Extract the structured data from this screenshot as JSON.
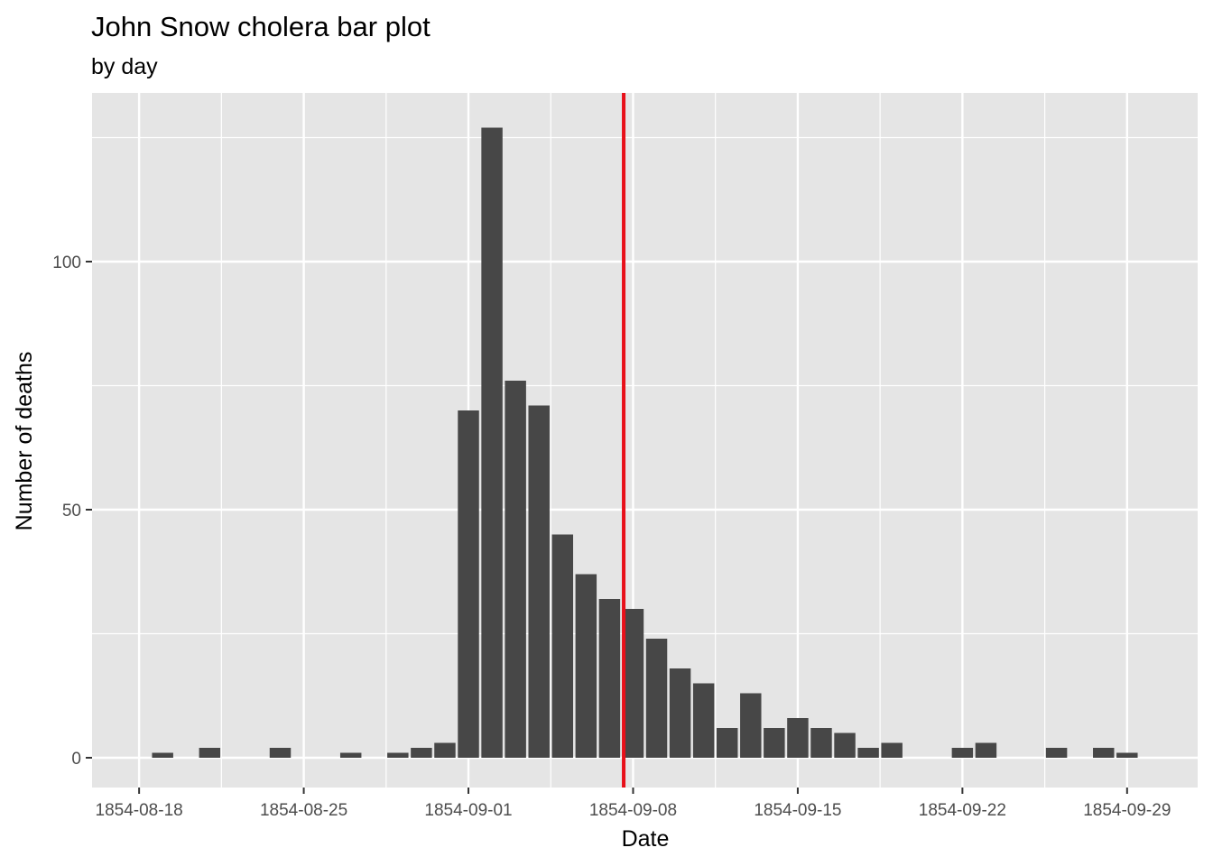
{
  "chart_data": {
    "type": "bar",
    "title": "John Snow cholera bar plot",
    "subtitle": "by day",
    "xlabel": "Date",
    "ylabel": "Number of deaths",
    "x_range": [
      "1854-08-16",
      "1854-10-02"
    ],
    "ylim": [
      -6,
      134
    ],
    "x_ticks": [
      "1854-08-18",
      "1854-08-25",
      "1854-09-01",
      "1854-09-08",
      "1854-09-15",
      "1854-09-22",
      "1854-09-29"
    ],
    "y_ticks": [
      0,
      50,
      100
    ],
    "grid": true,
    "vline": {
      "date": "1854-09-07.6",
      "color": "#e8101a"
    },
    "colors": {
      "bar": "#474747",
      "panel": "#e5e5e5",
      "grid": "#ffffff"
    },
    "points": [
      {
        "date": "1854-08-19",
        "deaths": 1
      },
      {
        "date": "1854-08-21",
        "deaths": 2
      },
      {
        "date": "1854-08-24",
        "deaths": 2
      },
      {
        "date": "1854-08-27",
        "deaths": 1
      },
      {
        "date": "1854-08-29",
        "deaths": 1
      },
      {
        "date": "1854-08-30",
        "deaths": 2
      },
      {
        "date": "1854-08-31",
        "deaths": 3
      },
      {
        "date": "1854-09-01",
        "deaths": 70
      },
      {
        "date": "1854-09-02",
        "deaths": 127
      },
      {
        "date": "1854-09-03",
        "deaths": 76
      },
      {
        "date": "1854-09-04",
        "deaths": 71
      },
      {
        "date": "1854-09-05",
        "deaths": 45
      },
      {
        "date": "1854-09-06",
        "deaths": 37
      },
      {
        "date": "1854-09-07",
        "deaths": 32
      },
      {
        "date": "1854-09-08",
        "deaths": 30
      },
      {
        "date": "1854-09-09",
        "deaths": 24
      },
      {
        "date": "1854-09-10",
        "deaths": 18
      },
      {
        "date": "1854-09-11",
        "deaths": 15
      },
      {
        "date": "1854-09-12",
        "deaths": 6
      },
      {
        "date": "1854-09-13",
        "deaths": 13
      },
      {
        "date": "1854-09-14",
        "deaths": 6
      },
      {
        "date": "1854-09-15",
        "deaths": 8
      },
      {
        "date": "1854-09-16",
        "deaths": 6
      },
      {
        "date": "1854-09-17",
        "deaths": 5
      },
      {
        "date": "1854-09-18",
        "deaths": 2
      },
      {
        "date": "1854-09-19",
        "deaths": 3
      },
      {
        "date": "1854-09-22",
        "deaths": 2
      },
      {
        "date": "1854-09-23",
        "deaths": 3
      },
      {
        "date": "1854-09-26",
        "deaths": 2
      },
      {
        "date": "1854-09-28",
        "deaths": 2
      },
      {
        "date": "1854-09-29",
        "deaths": 1
      }
    ]
  }
}
